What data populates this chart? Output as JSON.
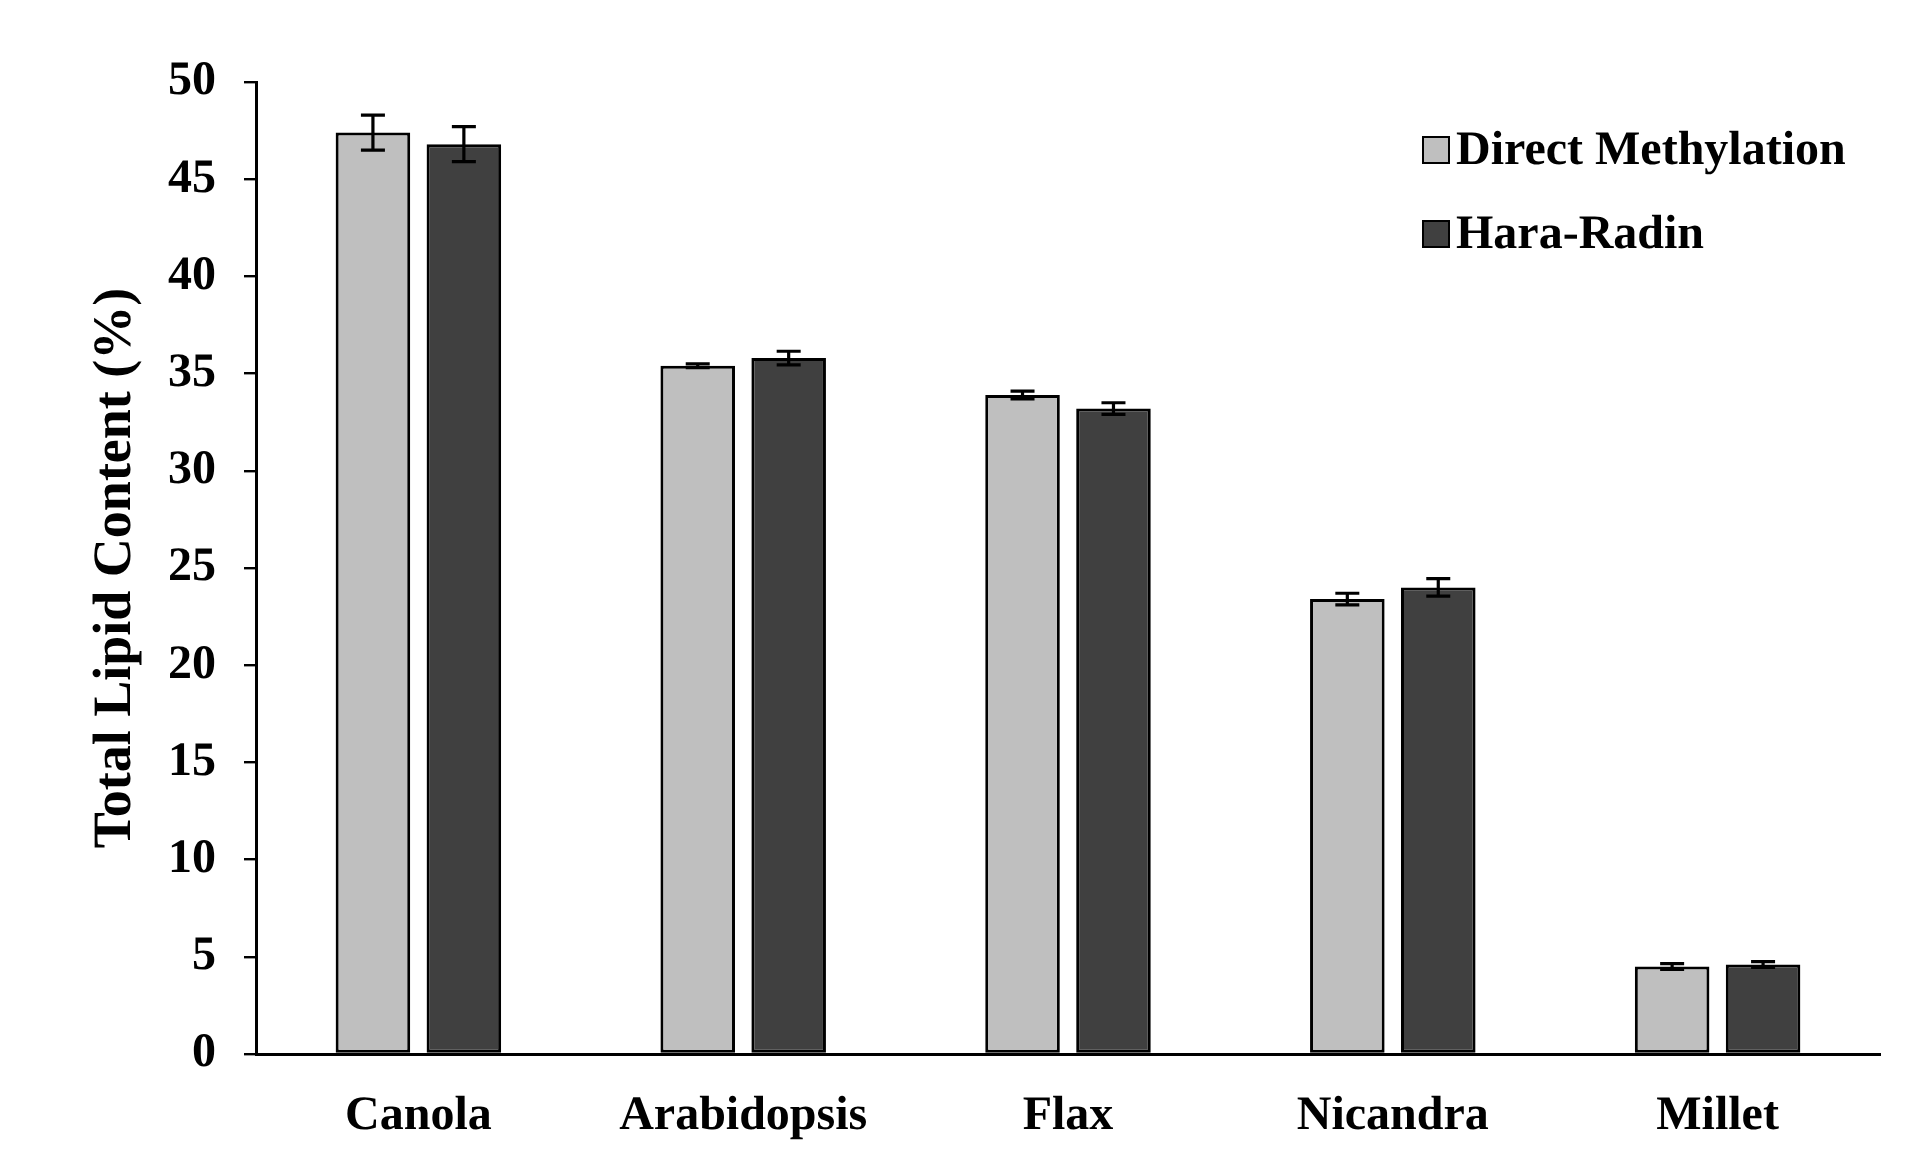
{
  "chart_data": {
    "type": "bar",
    "ylabel": "Total Lipid Content (%)",
    "categories": [
      "Canola",
      "Arabidopsis",
      "Flax",
      "Nicandra",
      "Millet"
    ],
    "series": [
      {
        "name": "Direct Methylation",
        "color": "#bfbfbf",
        "values": [
          47.4,
          35.4,
          33.9,
          23.4,
          4.5
        ],
        "errors": [
          0.9,
          0.1,
          0.2,
          0.3,
          0.15
        ]
      },
      {
        "name": "Hara-Radin",
        "color": "#404040",
        "values": [
          46.8,
          35.8,
          33.2,
          24.0,
          4.6
        ],
        "errors": [
          0.9,
          0.35,
          0.3,
          0.45,
          0.15
        ]
      }
    ],
    "ylim": [
      0,
      50
    ],
    "yticks": [
      0,
      5,
      10,
      15,
      20,
      25,
      30,
      35,
      40,
      45,
      50
    ],
    "grid": false,
    "legend": "top right"
  }
}
